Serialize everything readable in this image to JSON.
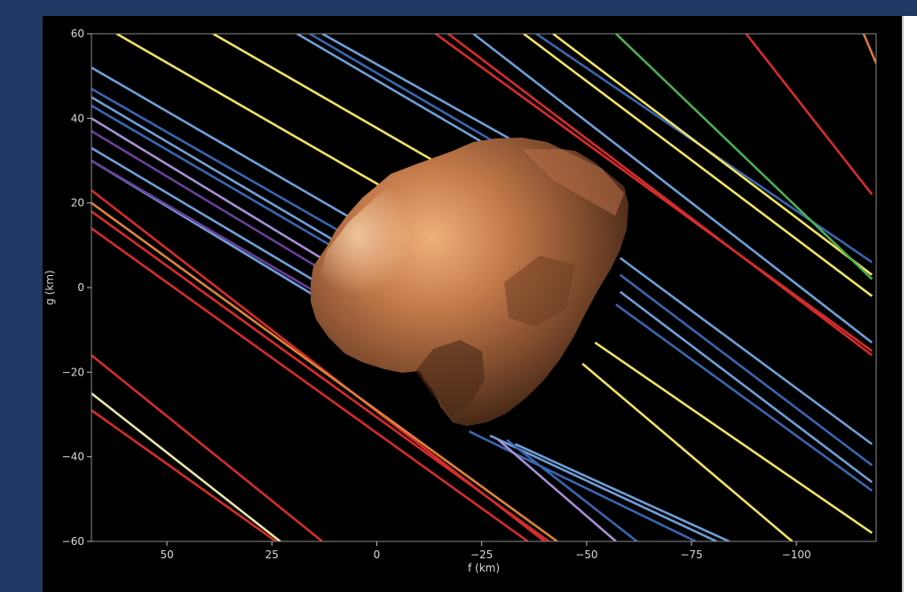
{
  "background_color": "#1f3864",
  "chart_data": {
    "type": "line",
    "title": "",
    "xlabel": "f (km)",
    "ylabel": "g (km)",
    "xlim": [
      68,
      -119
    ],
    "ylim": [
      -60,
      60
    ],
    "xticks": [
      50,
      25,
      0,
      -25,
      -50,
      -75,
      -100
    ],
    "xtick_labels": [
      "50",
      "25",
      "0",
      "−25",
      "−50",
      "−75",
      "−100"
    ],
    "yticks": [
      60,
      40,
      20,
      0,
      -20,
      -40,
      -60
    ],
    "ytick_labels": [
      "60",
      "40",
      "20",
      "0",
      "−20",
      "−40",
      "−60"
    ],
    "grid": false,
    "legend": "none",
    "background": "#000000",
    "overlay_image": "asteroid-silhouette",
    "chords_note": "parallel occultation chords",
    "series": [
      {
        "color": "#f1e264",
        "x": [
          62,
          -8
        ],
        "y": [
          60,
          20
        ]
      },
      {
        "color": "#f1e264",
        "x": [
          39,
          -38
        ],
        "y": [
          60,
          16
        ]
      },
      {
        "color": "#6f9fd8",
        "x": [
          19,
          -43
        ],
        "y": [
          60,
          24
        ]
      },
      {
        "color": "#6f9fd8",
        "x": [
          13,
          -50
        ],
        "y": [
          60,
          25
        ]
      },
      {
        "color": "#3a66b0",
        "x": [
          16,
          -46
        ],
        "y": [
          60,
          24
        ]
      },
      {
        "color": "#6f9fd8",
        "x": [
          68,
          -5
        ],
        "y": [
          52,
          10
        ]
      },
      {
        "color": "#3a66b0",
        "x": [
          68,
          -4
        ],
        "y": [
          47,
          6
        ]
      },
      {
        "color": "#6f9fd8",
        "x": [
          68,
          -2
        ],
        "y": [
          45,
          4
        ]
      },
      {
        "color": "#3a66b0",
        "x": [
          68,
          -1
        ],
        "y": [
          43,
          3
        ]
      },
      {
        "color": "#a88fd6",
        "x": [
          68,
          5
        ],
        "y": [
          40,
          2
        ]
      },
      {
        "color": "#6a3f9a",
        "x": [
          68,
          6
        ],
        "y": [
          37,
          0
        ]
      },
      {
        "color": "#6f9fd8",
        "x": [
          68,
          7
        ],
        "y": [
          33,
          -3
        ]
      },
      {
        "color": "#6f9fd8",
        "x": [
          68,
          8
        ],
        "y": [
          30,
          -6
        ]
      },
      {
        "color": "#6a3f9a",
        "x": [
          68,
          6
        ],
        "y": [
          30,
          -6
        ]
      },
      {
        "color": "#d62c2c",
        "x": [
          68,
          -40
        ],
        "y": [
          23,
          -60
        ]
      },
      {
        "color": "#e0833a",
        "x": [
          68,
          -43
        ],
        "y": [
          20,
          -60
        ]
      },
      {
        "color": "#d62c2c",
        "x": [
          68,
          -41
        ],
        "y": [
          18,
          -60
        ]
      },
      {
        "color": "#d62c2c",
        "x": [
          68,
          -36
        ],
        "y": [
          14,
          -60
        ]
      },
      {
        "color": "#d62c2c",
        "x": [
          68,
          13
        ],
        "y": [
          -16,
          -60
        ]
      },
      {
        "color": "#e8e6a8",
        "x": [
          68,
          23
        ],
        "y": [
          -25,
          -60
        ]
      },
      {
        "color": "#d62c2c",
        "x": [
          68,
          24
        ],
        "y": [
          -29,
          -60
        ]
      },
      {
        "color": "#3a66b0",
        "x": [
          -22,
          -76
        ],
        "y": [
          -34,
          -60
        ]
      },
      {
        "color": "#6f9fd8",
        "x": [
          -27,
          -81
        ],
        "y": [
          -35,
          -60
        ]
      },
      {
        "color": "#a88fd6",
        "x": [
          -29,
          -57
        ],
        "y": [
          -36,
          -60
        ]
      },
      {
        "color": "#3a66b0",
        "x": [
          -31,
          -62
        ],
        "y": [
          -36,
          -60
        ]
      },
      {
        "color": "#6f9fd8",
        "x": [
          -33,
          -84
        ],
        "y": [
          -37,
          -60
        ]
      },
      {
        "color": "#f1e264",
        "x": [
          -49,
          -99
        ],
        "y": [
          -18,
          -60
        ]
      },
      {
        "color": "#f1e264",
        "x": [
          -52,
          -118
        ],
        "y": [
          -13,
          -58
        ]
      },
      {
        "color": "#6f9fd8",
        "x": [
          -58,
          -118
        ],
        "y": [
          7,
          -37
        ]
      },
      {
        "color": "#3a66b0",
        "x": [
          -58,
          -118
        ],
        "y": [
          3,
          -42
        ]
      },
      {
        "color": "#6f9fd8",
        "x": [
          -58,
          -118
        ],
        "y": [
          -1,
          -46
        ]
      },
      {
        "color": "#3a66b0",
        "x": [
          -57,
          -118
        ],
        "y": [
          -4,
          -48
        ]
      },
      {
        "color": "#d62c2c",
        "x": [
          -17,
          -118
        ],
        "y": [
          60,
          -16
        ]
      },
      {
        "color": "#6f9fd8",
        "x": [
          -23,
          -118
        ],
        "y": [
          60,
          -13
        ]
      },
      {
        "color": "#f1e264",
        "x": [
          -35,
          -118
        ],
        "y": [
          60,
          -2
        ]
      },
      {
        "color": "#3a66b0",
        "x": [
          -38,
          -118
        ],
        "y": [
          60,
          6
        ]
      },
      {
        "color": "#f1e264",
        "x": [
          -42,
          -118
        ],
        "y": [
          60,
          3
        ]
      },
      {
        "color": "#4caf50",
        "x": [
          -57,
          -118
        ],
        "y": [
          60,
          2
        ]
      },
      {
        "color": "#d62c2c",
        "x": [
          -88,
          -118
        ],
        "y": [
          60,
          22
        ]
      },
      {
        "color": "#d9773a",
        "x": [
          -116,
          -119
        ],
        "y": [
          60,
          53
        ]
      },
      {
        "color": "#d62c2c",
        "x": [
          -14,
          -118
        ],
        "y": [
          60,
          -15
        ]
      }
    ]
  }
}
